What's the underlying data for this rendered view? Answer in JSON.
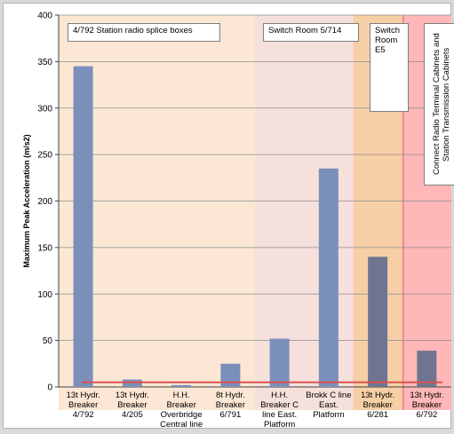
{
  "chart_data": {
    "type": "bar",
    "ylabel": "Maximum Peak Acceleration (m/s2)",
    "xlabel": "",
    "ylim": [
      0,
      400
    ],
    "yticks": [
      0,
      50,
      100,
      150,
      200,
      250,
      300,
      350,
      400
    ],
    "grid": true,
    "categories": [
      "13t Hydr. Breaker 4/792",
      "13t Hydr. Breaker 4/205",
      "H.H. Breaker Overbridge Central line",
      "8t Hydr. Breaker 6/791",
      "H.H. Breaker C line East. Platform",
      "Brokk C line East. Platform",
      "13t Hydr. Breaker 6/281",
      "13t Hydr. Breaker 6/792"
    ],
    "category_lines": [
      [
        "13t Hydr.",
        "Breaker",
        "4/792"
      ],
      [
        "13t Hydr.",
        "Breaker",
        "4/205"
      ],
      [
        "H.H.",
        "Breaker",
        "Overbridge",
        "Central line"
      ],
      [
        "8t Hydr.",
        "Breaker",
        "6/791"
      ],
      [
        "H.H.",
        "Breaker C",
        "line East.",
        "Platform"
      ],
      [
        "Brokk C line",
        "East.",
        "Platform"
      ],
      [
        "13t Hydr.",
        "Breaker",
        "6/281"
      ],
      [
        "13t Hydr.",
        "Breaker",
        "6/792"
      ]
    ],
    "values": [
      345,
      8,
      2,
      25,
      52,
      235,
      140,
      39
    ],
    "reference_line": 5,
    "colors": {
      "bar": "#7b8fbb",
      "bar_dark": "#6f7591",
      "reference_line": "#d9534f",
      "zone_1": "#fbe7d4",
      "zone_2": "#f5e0dc",
      "zone_3": "#f7cfa6",
      "zone_4": "#ffb7b7",
      "zone_4_edge": "#e98a8a"
    },
    "zones": [
      {
        "label": "4/792 Station radio splice boxes",
        "from": 0,
        "to": 3,
        "color": "#fbe7d4"
      },
      {
        "label": "Switch Room 5/714",
        "from": 4,
        "to": 5,
        "color": "#f5e0dc"
      },
      {
        "label": "Switch Room E5",
        "from": 6,
        "to": 6,
        "color": "#f7cfa6"
      },
      {
        "label": "Connect Radio Terminal Cabinets and Station Transmission Cabinets",
        "from": 7,
        "to": 7,
        "color": "#ffb7b7"
      }
    ]
  },
  "annotations": {
    "zone_1": "4/792 Station radio splice boxes",
    "zone_2": "Switch Room 5/714",
    "zone_3": "Switch Room E5",
    "zone_4": "Connect Radio Terminal Cabinets and Station Transmission Cabinets"
  }
}
